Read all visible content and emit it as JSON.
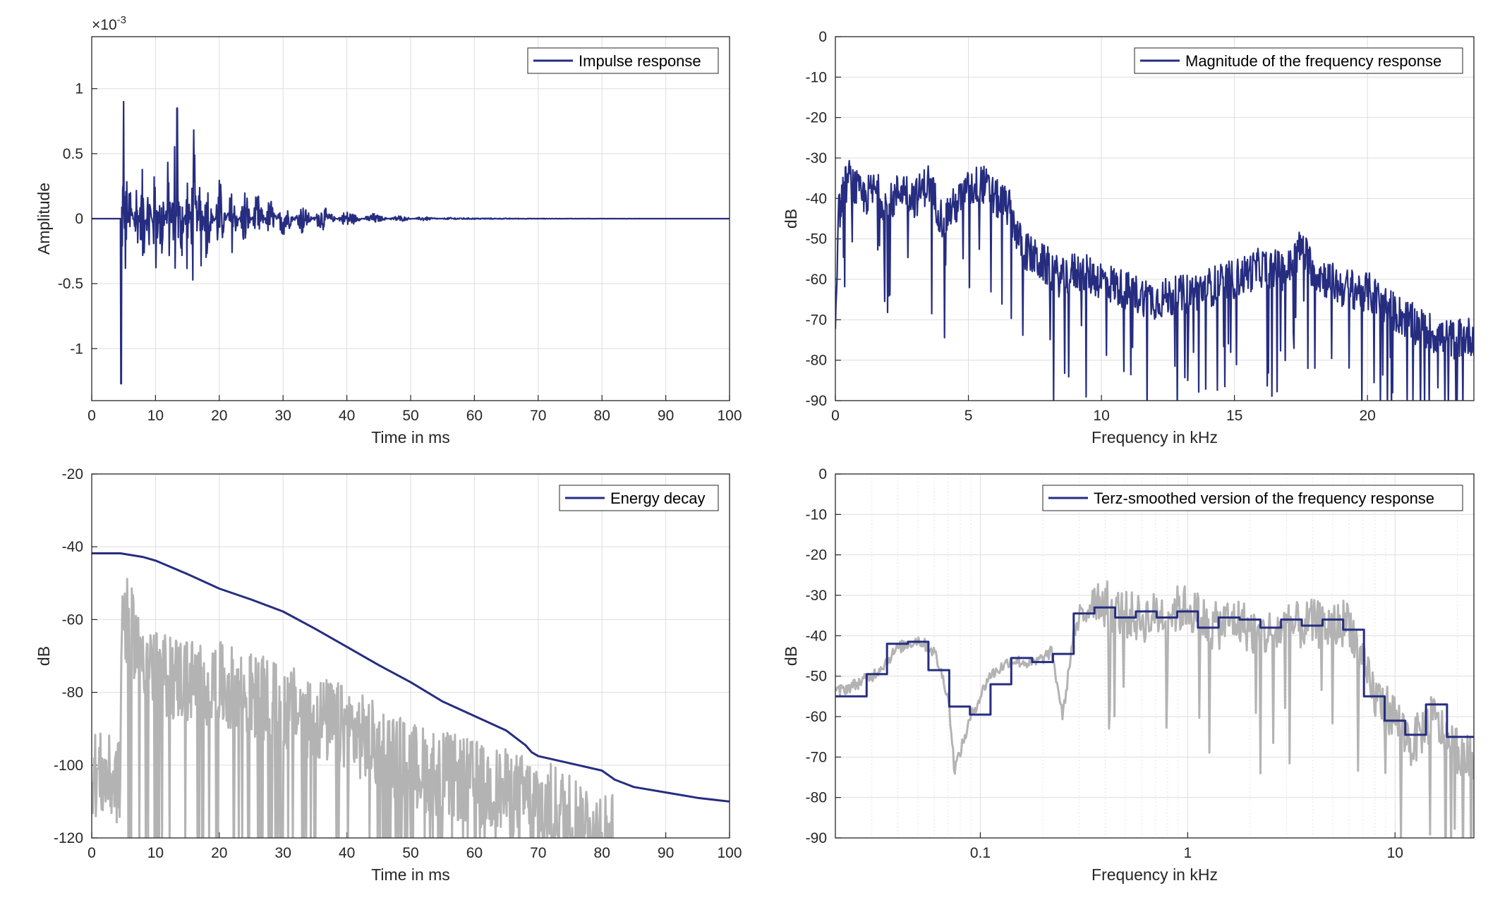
{
  "chart_data": [
    {
      "type": "line",
      "title": "",
      "xlabel": "Time in ms",
      "ylabel": "Amplitude",
      "exponent_label": "×10",
      "exponent_power": "-3",
      "xlim": [
        0,
        100
      ],
      "ylim": [
        -1.4,
        1.4
      ],
      "xticks": [
        0,
        10,
        20,
        30,
        40,
        50,
        60,
        70,
        80,
        90,
        100
      ],
      "xtick_labels": [
        "0",
        "10",
        "20",
        "30",
        "40",
        "50",
        "60",
        "70",
        "80",
        "90",
        "100"
      ],
      "yticks": [
        -1,
        -0.5,
        0,
        0.5,
        1
      ],
      "ytick_labels": [
        "-1",
        "-0.5",
        "0",
        "0.5",
        "1"
      ],
      "grid": true,
      "legend_position": "top-right",
      "series": [
        {
          "name": "Impulse response",
          "color": "#262d80",
          "x": [
            0,
            4.5,
            4.6,
            4.8,
            5.0,
            5.3,
            6,
            7,
            8,
            9,
            10,
            11,
            12,
            13,
            13.4,
            14,
            15,
            16,
            17,
            18,
            20,
            22,
            24,
            26,
            28,
            30,
            33,
            36,
            40,
            44,
            48,
            52,
            56,
            60,
            70,
            80,
            90,
            100
          ],
          "values": [
            0,
            0,
            -1.27,
            0.46,
            0.9,
            -0.7,
            0.5,
            -0.45,
            0.55,
            -0.5,
            0.63,
            -0.6,
            0.6,
            -0.75,
            0.85,
            -0.6,
            0.5,
            -0.78,
            0.55,
            -0.45,
            0.4,
            -0.35,
            0.3,
            -0.25,
            0.22,
            -0.2,
            0.15,
            -0.12,
            0.08,
            -0.05,
            0.03,
            -0.02,
            0.01,
            0.005,
            0.002,
            0.001,
            0,
            0
          ]
        }
      ]
    },
    {
      "type": "line",
      "title": "",
      "xlabel": "Frequency in kHz",
      "ylabel": "dB",
      "xlim": [
        0,
        24
      ],
      "ylim": [
        -90,
        0
      ],
      "xticks": [
        0,
        5,
        10,
        15,
        20
      ],
      "xtick_labels": [
        "0",
        "5",
        "10",
        "15",
        "20"
      ],
      "yticks": [
        0,
        -10,
        -20,
        -30,
        -40,
        -50,
        -60,
        -70,
        -80,
        -90
      ],
      "ytick_labels": [
        "0",
        "-10",
        "-20",
        "-30",
        "-40",
        "-50",
        "-60",
        "-70",
        "-80",
        "-90"
      ],
      "grid": true,
      "legend_position": "top-right",
      "series": [
        {
          "name": "Magnitude of the frequency response",
          "color": "#262d80",
          "x": [
            0,
            0.1,
            0.3,
            0.5,
            1,
            1.5,
            2,
            2.5,
            3,
            3.5,
            4,
            4.5,
            5,
            5.5,
            6,
            6.5,
            7,
            7.5,
            8,
            8.5,
            9,
            10,
            11,
            12,
            13,
            14,
            15,
            16,
            17,
            17.5,
            18,
            19,
            20,
            21,
            22,
            23,
            24
          ],
          "values": [
            -72,
            -45,
            -38,
            -35,
            -40,
            -38,
            -42,
            -37,
            -40,
            -36,
            -45,
            -42,
            -38,
            -36,
            -40,
            -42,
            -52,
            -55,
            -57,
            -60,
            -58,
            -60,
            -63,
            -65,
            -64,
            -62,
            -60,
            -57,
            -58,
            -52,
            -58,
            -62,
            -63,
            -68,
            -72,
            -75,
            -74
          ]
        }
      ]
    },
    {
      "type": "line",
      "title": "",
      "xlabel": "Time in ms",
      "ylabel": "dB",
      "xlim": [
        0,
        100
      ],
      "ylim": [
        -120,
        -20
      ],
      "xticks": [
        0,
        10,
        20,
        30,
        40,
        50,
        60,
        70,
        80,
        90,
        100
      ],
      "xtick_labels": [
        "0",
        "10",
        "20",
        "30",
        "40",
        "50",
        "60",
        "70",
        "80",
        "90",
        "100"
      ],
      "yticks": [
        -20,
        -40,
        -60,
        -80,
        -100,
        -120
      ],
      "ytick_labels": [
        "-20",
        "-40",
        "-60",
        "-80",
        "-100",
        "-120"
      ],
      "grid": true,
      "legend_position": "top-right",
      "series": [
        {
          "name": "Energy decay",
          "color": "#262d80",
          "x": [
            0,
            4.5,
            8,
            10,
            15,
            20,
            25,
            30,
            35,
            40,
            45,
            50,
            55,
            60,
            65,
            68,
            69,
            70,
            75,
            80,
            82,
            85,
            90,
            95,
            100
          ],
          "values": [
            -41.8,
            -41.8,
            -42.8,
            -43.8,
            -47.5,
            -51.5,
            -54.5,
            -57.8,
            -62.5,
            -67.5,
            -72.5,
            -77.2,
            -82.5,
            -86.5,
            -90.5,
            -94.5,
            -96.5,
            -97.5,
            -99.5,
            -101.5,
            -104,
            -106,
            -107.5,
            -109,
            -110
          ]
        },
        {
          "name": "",
          "color": "#b3b3b3",
          "x": [
            0,
            4.5,
            4.7,
            10,
            20,
            30,
            40,
            50,
            60,
            70,
            80,
            82
          ],
          "values": [
            -102,
            -105,
            -58,
            -75,
            -78,
            -84,
            -90,
            -100,
            -105,
            -110,
            -117,
            -120
          ]
        }
      ]
    },
    {
      "type": "line",
      "title": "",
      "xlabel": "Frequency in kHz",
      "ylabel": "dB",
      "xscale": "log",
      "xlim": [
        0.02,
        24
      ],
      "ylim": [
        -90,
        0
      ],
      "xticks": [
        0.1,
        1,
        10
      ],
      "xtick_labels": [
        "0.1",
        "1",
        "10"
      ],
      "yticks": [
        0,
        -10,
        -20,
        -30,
        -40,
        -50,
        -60,
        -70,
        -80,
        -90
      ],
      "ytick_labels": [
        "0",
        "-10",
        "-20",
        "-30",
        "-40",
        "-50",
        "-60",
        "-70",
        "-80",
        "-90"
      ],
      "grid": true,
      "legend_position": "top-right",
      "series": [
        {
          "name": "Terz-smoothed version of the frequency response",
          "color": "#262d80",
          "step_x": [
            0.02,
            0.0283,
            0.0355,
            0.0447,
            0.0562,
            0.0708,
            0.0891,
            0.112,
            0.141,
            0.178,
            0.224,
            0.282,
            0.355,
            0.447,
            0.562,
            0.708,
            0.891,
            1.12,
            1.41,
            1.78,
            2.24,
            2.82,
            3.55,
            4.47,
            5.62,
            7.08,
            8.91,
            11.2,
            14.1,
            17.8
          ],
          "step_end": 24,
          "values": [
            -55,
            -49.5,
            -42,
            -41.5,
            -48.5,
            -57.5,
            -59.5,
            -52,
            -45.5,
            -46.5,
            -44.5,
            -34.5,
            -33,
            -35.5,
            -34,
            -35.5,
            -34,
            -38,
            -35.5,
            -36,
            -38,
            -36,
            -37.5,
            -36,
            -38.5,
            -55,
            -61,
            -64.5,
            -57,
            -65
          ]
        },
        {
          "name": "",
          "color": "#b3b3b3",
          "x": [
            0.02,
            0.03,
            0.04,
            0.05,
            0.06,
            0.07,
            0.075,
            0.09,
            0.11,
            0.14,
            0.18,
            0.22,
            0.25,
            0.28,
            0.35,
            0.45,
            0.6,
            0.8,
            1,
            1.3,
            1.7,
            2.2,
            3,
            4,
            5,
            6,
            7,
            8,
            10,
            12,
            15,
            18,
            24
          ],
          "values": [
            -54,
            -50,
            -43,
            -41,
            -44,
            -55,
            -73,
            -60,
            -50,
            -46,
            -47,
            -44,
            -60,
            -40,
            -30,
            -34,
            -36,
            -34,
            -33,
            -38,
            -36,
            -40,
            -38,
            -37,
            -38,
            -36,
            -48,
            -55,
            -60,
            -67,
            -60,
            -66,
            -72
          ]
        }
      ]
    }
  ]
}
